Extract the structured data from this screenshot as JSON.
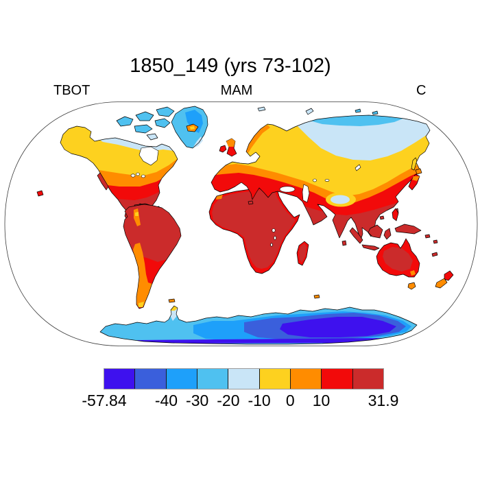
{
  "title": "1850_149 (yrs 73-102)",
  "labels": {
    "left": "TBOT",
    "center": "MAM",
    "right": "C"
  },
  "colorbar": {
    "min_label": "-57.84",
    "max_label": "31.9",
    "colors": [
      "#3E11EE",
      "#3A5FDC",
      "#1EA0FA",
      "#4FC1F0",
      "#C9E5F7",
      "#FDD11F",
      "#FF8C00",
      "#F20A0A",
      "#CB2B2B"
    ],
    "tick_labels": [
      {
        "text": "-57.84",
        "boundary": 0
      },
      {
        "text": "-40",
        "boundary": 2
      },
      {
        "text": "-30",
        "boundary": 3
      },
      {
        "text": "-20",
        "boundary": 4
      },
      {
        "text": "-10",
        "boundary": 5
      },
      {
        "text": "0",
        "boundary": 6
      },
      {
        "text": "10",
        "boundary": 7
      },
      {
        "text": "31.9",
        "boundary": 9
      }
    ]
  },
  "map": {
    "projection": "robinson",
    "ocean_color": "#FFFFFF",
    "coastline_color": "#000000"
  }
}
